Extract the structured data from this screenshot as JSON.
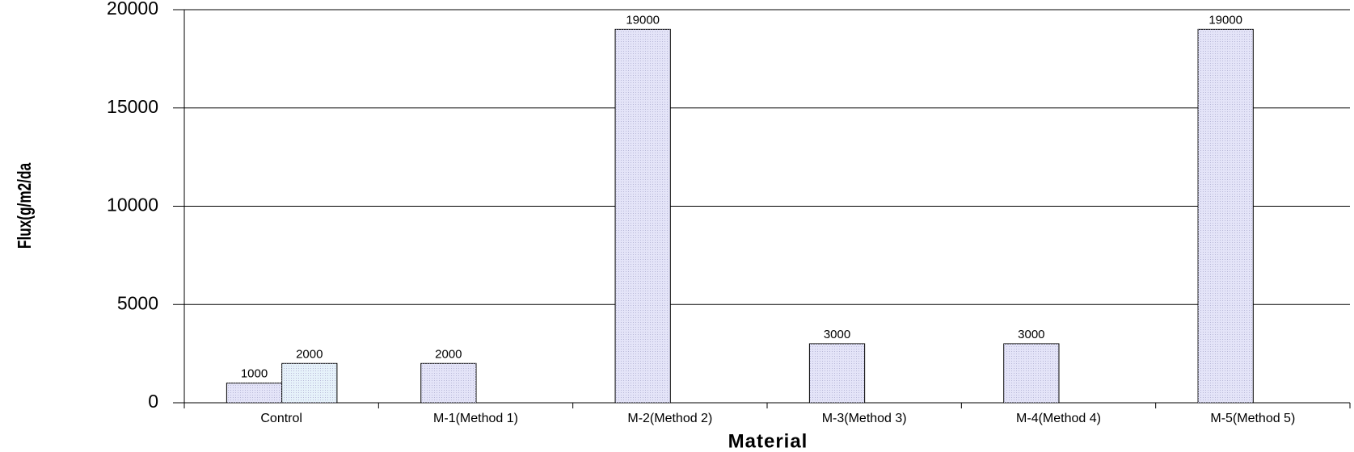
{
  "chart_data": {
    "type": "bar",
    "x_label": "Material",
    "y_label": "Flux(g/m2/da",
    "categories": [
      "Control",
      "M-1(Method 1)",
      "M-2(Method 2)",
      "M-3(Method 3)",
      "M-4(Method 4)",
      "M-5(Method 5)"
    ],
    "series": [
      {
        "color": "#e4e4f8",
        "values": [
          1000,
          2000,
          19000,
          3000,
          3000,
          19000
        ]
      },
      {
        "color": "#e6f2fa",
        "values": [
          2000,
          null,
          null,
          null,
          null,
          null
        ]
      }
    ],
    "ylim": [
      0,
      20000
    ],
    "yticks": [
      0,
      5000,
      10000,
      15000,
      20000
    ],
    "grid": true
  }
}
